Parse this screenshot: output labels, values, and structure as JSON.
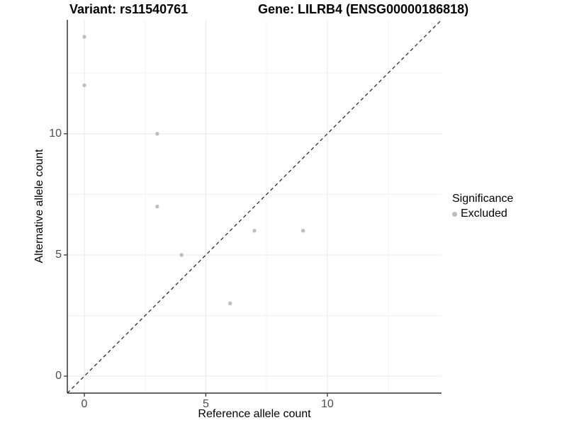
{
  "chart_data": {
    "type": "scatter",
    "titles": {
      "left": "Variant: rs11540761",
      "right": "Gene: LILRB4 (ENSG00000186818)"
    },
    "xlabel": "Reference allele count",
    "ylabel": "Alternative allele count",
    "xlim": [
      -0.7,
      14.7
    ],
    "ylim": [
      -0.7,
      14.7
    ],
    "x_major_ticks": [
      0,
      5,
      10
    ],
    "y_major_ticks": [
      0,
      5,
      10
    ],
    "x_minor_gridlines": [
      2.5,
      7.5,
      12.5
    ],
    "y_minor_gridlines": [
      2.5,
      7.5,
      12.5
    ],
    "grid": "major and minor gridlines on white background, no top/right border",
    "identity_line": {
      "equation": "y = x",
      "style": "dashed",
      "color": "#2e2e2e"
    },
    "series": [
      {
        "name": "Excluded",
        "color": "#bebebe",
        "points": [
          [
            0,
            14
          ],
          [
            0,
            12
          ],
          [
            3,
            10
          ],
          [
            3,
            7
          ],
          [
            4,
            5
          ],
          [
            6,
            3
          ],
          [
            7,
            6
          ],
          [
            9,
            6
          ]
        ]
      }
    ],
    "legend": {
      "title": "Significance",
      "position": "right",
      "items": [
        {
          "label": "Excluded",
          "color": "#bebebe"
        }
      ]
    },
    "colors": {
      "background": "#ffffff",
      "axis_line": "#333333",
      "tick_mark": "#333333",
      "tick_label": "#4d4d4d",
      "grid_major": "#e8e8e8",
      "grid_minor": "#f3f3f3",
      "point": "#bebebe",
      "title_text": "#000000"
    }
  }
}
